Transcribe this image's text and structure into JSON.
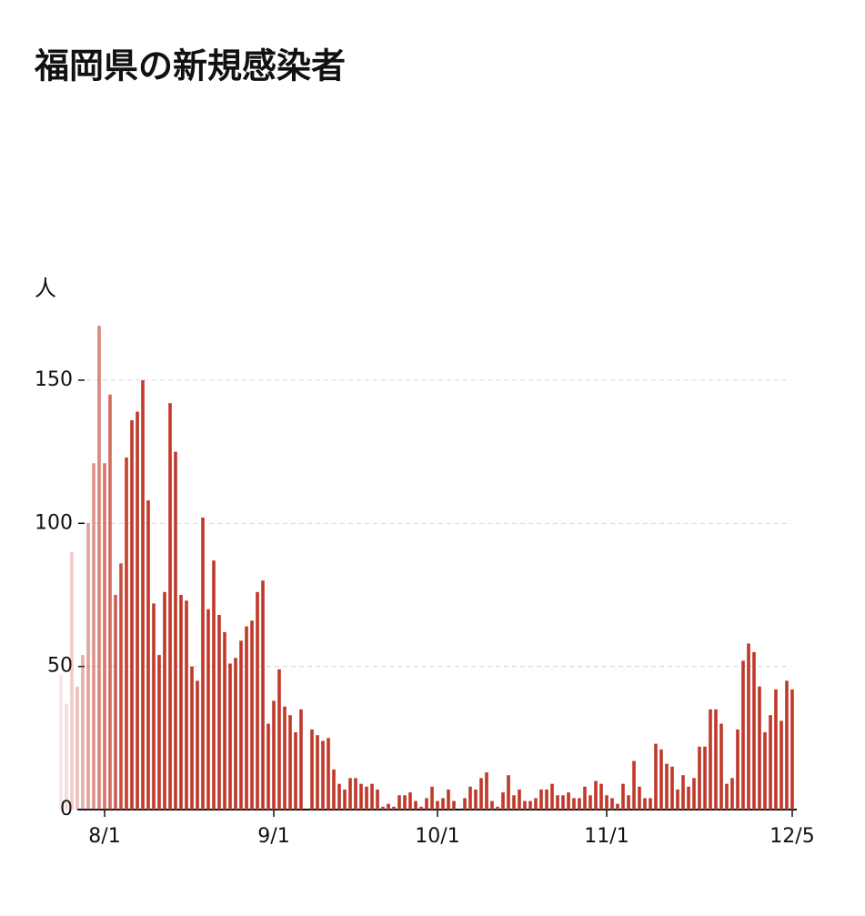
{
  "chart_data": {
    "type": "bar",
    "title": "福岡県の新規感染者",
    "y_label": "人",
    "categories": [
      null,
      null,
      null,
      null,
      null,
      null,
      null,
      null,
      "8/1",
      null,
      null,
      null,
      null,
      null,
      null,
      null,
      null,
      null,
      null,
      null,
      null,
      null,
      null,
      null,
      null,
      null,
      null,
      null,
      null,
      null,
      null,
      null,
      null,
      null,
      null,
      null,
      null,
      null,
      null,
      "9/1",
      null,
      null,
      null,
      null,
      null,
      null,
      null,
      null,
      null,
      null,
      null,
      null,
      null,
      null,
      null,
      null,
      null,
      null,
      null,
      null,
      null,
      null,
      null,
      null,
      null,
      null,
      null,
      null,
      null,
      "10/1",
      null,
      null,
      null,
      null,
      null,
      null,
      null,
      null,
      null,
      null,
      null,
      null,
      null,
      null,
      null,
      null,
      null,
      null,
      null,
      null,
      null,
      null,
      null,
      null,
      null,
      null,
      null,
      null,
      null,
      null,
      "11/1",
      null,
      null,
      null,
      null,
      null,
      null,
      null,
      null,
      null,
      null,
      null,
      null,
      null,
      null,
      null,
      null,
      null,
      null,
      null,
      null,
      null,
      null,
      null,
      null,
      null,
      null,
      null,
      null,
      null,
      null,
      null,
      null,
      null,
      "12/5"
    ],
    "values": [
      47,
      37,
      90,
      43,
      54,
      100,
      121,
      169,
      121,
      145,
      75,
      86,
      123,
      136,
      139,
      150,
      108,
      72,
      54,
      76,
      142,
      125,
      75,
      73,
      50,
      45,
      102,
      70,
      87,
      68,
      62,
      51,
      53,
      59,
      64,
      66,
      76,
      80,
      30,
      38,
      49,
      36,
      33,
      27,
      35,
      0,
      28,
      26,
      24,
      25,
      14,
      9,
      7,
      11,
      11,
      9,
      8,
      9,
      7,
      1,
      2,
      1,
      5,
      5,
      6,
      3,
      1,
      4,
      8,
      3,
      4,
      7,
      3,
      0,
      4,
      8,
      7,
      11,
      13,
      3,
      1,
      6,
      12,
      5,
      7,
      3,
      3,
      4,
      7,
      7,
      9,
      5,
      5,
      6,
      4,
      4,
      8,
      5,
      10,
      9,
      5,
      4,
      2,
      9,
      5,
      17,
      8,
      4,
      4,
      23,
      21,
      16,
      15,
      7,
      12,
      8,
      11,
      22,
      22,
      35,
      35,
      30,
      9,
      11,
      28,
      52,
      58,
      55,
      43,
      27,
      33,
      42,
      31,
      45,
      42
    ],
    "color": "#c0392b",
    "ylim": [
      0,
      170
    ],
    "yticks": [
      0,
      50,
      100,
      150
    ],
    "grid": true
  }
}
